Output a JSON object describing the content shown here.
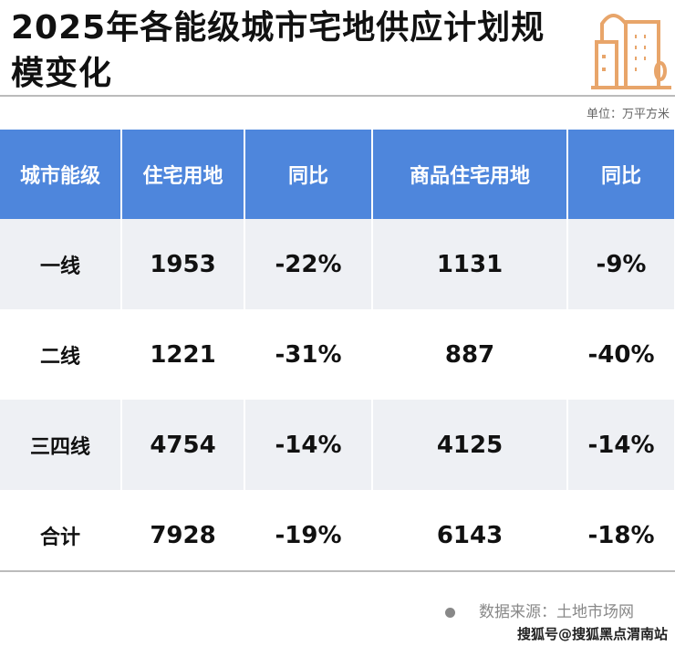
{
  "title": "2025年各能级城市宅地供应计划规模变化",
  "unit": "单位：万平方米",
  "table": {
    "headers": [
      "城市能级",
      "住宅用地",
      "同比",
      "商品住宅用地",
      "同比"
    ],
    "rows": [
      [
        "一线",
        "1953",
        "-22%",
        "1131",
        "-9%"
      ],
      [
        "二线",
        "1221",
        "-31%",
        "887",
        "-40%"
      ],
      [
        "三四线",
        "4754",
        "-14%",
        "4125",
        "-14%"
      ],
      [
        "合计",
        "7928",
        "-19%",
        "6143",
        "-18%"
      ]
    ]
  },
  "source": "数据来源：土地市场网",
  "watermark": "搜狐号@搜狐黑点渭南站",
  "colors": {
    "header": "#4e86dc",
    "icon": "#e8a56a"
  }
}
